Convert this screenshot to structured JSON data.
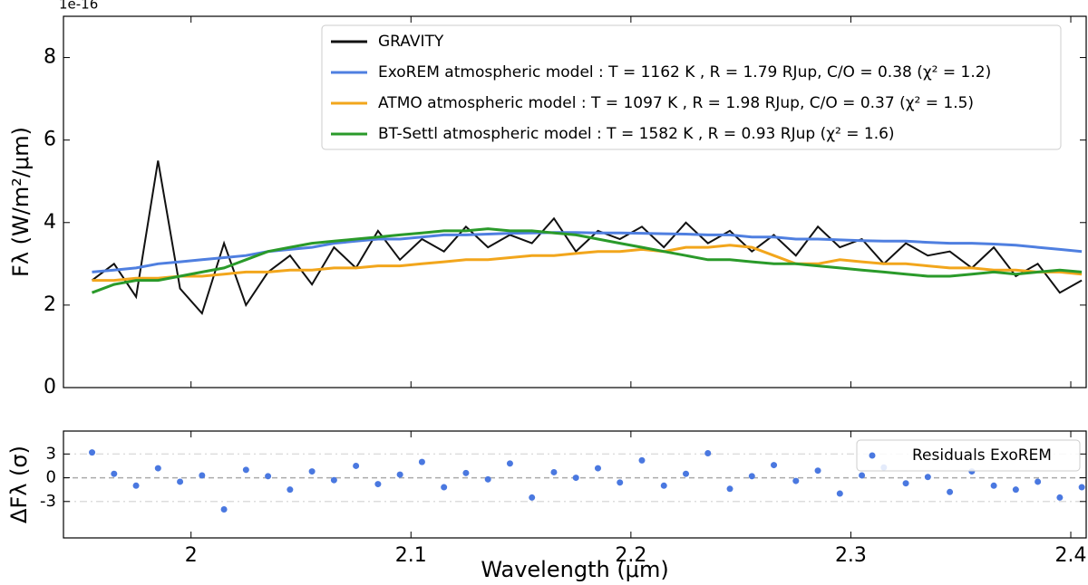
{
  "chart_data": [
    {
      "type": "line",
      "offset_label": "1e-16",
      "ylabel": "Fλ (W/m²/μm)",
      "x": [
        1.955,
        1.965,
        1.975,
        1.985,
        1.995,
        2.005,
        2.015,
        2.025,
        2.035,
        2.045,
        2.055,
        2.065,
        2.075,
        2.085,
        2.095,
        2.105,
        2.115,
        2.125,
        2.135,
        2.145,
        2.155,
        2.165,
        2.175,
        2.185,
        2.195,
        2.205,
        2.215,
        2.225,
        2.235,
        2.245,
        2.255,
        2.265,
        2.275,
        2.285,
        2.295,
        2.305,
        2.315,
        2.325,
        2.335,
        2.345,
        2.355,
        2.365,
        2.375,
        2.385,
        2.395,
        2.405
      ],
      "series": [
        {
          "name": "GRAVITY",
          "color": "#111111",
          "values": [
            2.6,
            3.0,
            2.2,
            5.5,
            2.4,
            1.8,
            3.5,
            2.0,
            2.8,
            3.2,
            2.5,
            3.4,
            2.9,
            3.8,
            3.1,
            3.6,
            3.3,
            3.9,
            3.4,
            3.7,
            3.5,
            4.1,
            3.3,
            3.8,
            3.6,
            3.9,
            3.4,
            4.0,
            3.5,
            3.8,
            3.3,
            3.7,
            3.2,
            3.9,
            3.4,
            3.6,
            3.0,
            3.5,
            3.2,
            3.3,
            2.9,
            3.4,
            2.7,
            3.0,
            2.3,
            2.6
          ]
        },
        {
          "name": "ExoREM atmospheric model : T = 1162 K , R = 1.79 RJup, C/O = 0.38 (χ² = 1.2)",
          "color": "#4f7fe0",
          "values": [
            2.8,
            2.85,
            2.9,
            3.0,
            3.05,
            3.1,
            3.15,
            3.2,
            3.3,
            3.35,
            3.4,
            3.5,
            3.55,
            3.6,
            3.6,
            3.65,
            3.7,
            3.7,
            3.72,
            3.74,
            3.75,
            3.76,
            3.76,
            3.75,
            3.75,
            3.74,
            3.73,
            3.72,
            3.7,
            3.7,
            3.65,
            3.65,
            3.6,
            3.6,
            3.58,
            3.56,
            3.55,
            3.55,
            3.52,
            3.5,
            3.5,
            3.48,
            3.45,
            3.4,
            3.35,
            3.3
          ]
        },
        {
          "name": "ATMO atmospheric model : T = 1097 K , R = 1.98 RJup, C/O = 0.37 (χ² = 1.5)",
          "color": "#f2a61c",
          "values": [
            2.6,
            2.6,
            2.65,
            2.65,
            2.7,
            2.7,
            2.75,
            2.8,
            2.8,
            2.85,
            2.85,
            2.9,
            2.9,
            2.95,
            2.95,
            3.0,
            3.05,
            3.1,
            3.1,
            3.15,
            3.2,
            3.2,
            3.25,
            3.3,
            3.3,
            3.35,
            3.3,
            3.4,
            3.4,
            3.45,
            3.4,
            3.2,
            3.0,
            3.0,
            3.1,
            3.05,
            3.0,
            3.0,
            2.95,
            2.9,
            2.9,
            2.85,
            2.85,
            2.8,
            2.8,
            2.75
          ]
        },
        {
          "name": "BT-Settl atmospheric model : T = 1582 K , R = 0.93 RJup (χ² = 1.6)",
          "color": "#2a9a2a",
          "values": [
            2.3,
            2.5,
            2.6,
            2.6,
            2.7,
            2.8,
            2.9,
            3.1,
            3.3,
            3.4,
            3.5,
            3.55,
            3.6,
            3.65,
            3.7,
            3.75,
            3.8,
            3.8,
            3.85,
            3.8,
            3.8,
            3.75,
            3.7,
            3.6,
            3.5,
            3.4,
            3.3,
            3.2,
            3.1,
            3.1,
            3.05,
            3.0,
            3.0,
            2.95,
            2.9,
            2.85,
            2.8,
            2.75,
            2.7,
            2.7,
            2.75,
            2.8,
            2.75,
            2.8,
            2.85,
            2.8
          ]
        }
      ],
      "xlim": [
        1.942,
        2.407
      ],
      "xticks": [
        2,
        2.1,
        2.2,
        2.3,
        2.4
      ],
      "ylim": [
        0,
        9
      ],
      "yticks": [
        0,
        2,
        4,
        6,
        8
      ]
    },
    {
      "type": "scatter",
      "xlabel": "Wavelength (μm)",
      "ylabel": "ΔFλ (σ)",
      "series": [
        {
          "name": "Residuals ExoREM",
          "color": "#4a78e0",
          "x": [
            1.955,
            1.965,
            1.975,
            1.985,
            1.995,
            2.005,
            2.015,
            2.025,
            2.035,
            2.045,
            2.055,
            2.065,
            2.075,
            2.085,
            2.095,
            2.105,
            2.115,
            2.125,
            2.135,
            2.145,
            2.155,
            2.165,
            2.175,
            2.185,
            2.195,
            2.205,
            2.215,
            2.225,
            2.235,
            2.245,
            2.255,
            2.265,
            2.275,
            2.285,
            2.295,
            2.305,
            2.315,
            2.325,
            2.335,
            2.345,
            2.355,
            2.365,
            2.375,
            2.385,
            2.395,
            2.405
          ],
          "values": [
            3.2,
            0.5,
            -1,
            1.2,
            -0.5,
            0.3,
            -4,
            1,
            0.2,
            -1.5,
            0.8,
            -0.3,
            1.5,
            -0.8,
            0.4,
            2,
            -1.2,
            0.6,
            -0.2,
            1.8,
            -2.5,
            0.7,
            0,
            1.2,
            -0.6,
            2.2,
            -1,
            0.5,
            3.1,
            -1.4,
            0.2,
            1.6,
            -0.4,
            0.9,
            -2,
            0.3,
            1.3,
            -0.7,
            0.1,
            -1.8,
            0.8,
            -1,
            -1.5,
            -0.5,
            -2.5,
            -1.2
          ]
        }
      ],
      "xlim": [
        1.942,
        2.407
      ],
      "xticks": [
        2,
        2.1,
        2.2,
        2.3,
        2.4
      ],
      "ylim": [
        -7.6,
        5.9
      ],
      "yticks": [
        3,
        0,
        -3
      ]
    }
  ]
}
